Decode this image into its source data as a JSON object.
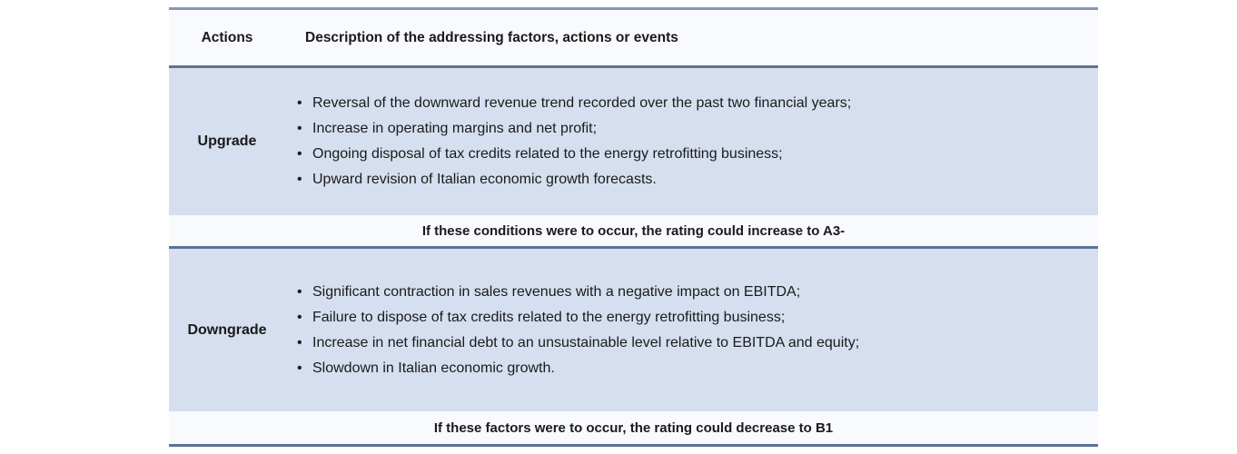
{
  "colors": {
    "row_bg": "#d6dff0",
    "band_bg": "#f8fafd",
    "border_dark": "#5a7394",
    "border_light": "#8398b4",
    "text": "#1a1a1a",
    "page_bg": "#ffffff"
  },
  "table": {
    "header": {
      "col1": "Actions",
      "col2": "Description of the addressing factors, actions or events"
    },
    "sections": [
      {
        "action": "Upgrade",
        "bullets": [
          "Reversal of the downward revenue trend recorded over the past two financial years;",
          "Increase in operating margins and net profit;",
          "Ongoing disposal of tax credits related to the energy retrofitting business;",
          "Upward revision of Italian economic growth forecasts."
        ],
        "note": "If these conditions were to occur, the rating could increase to A3-"
      },
      {
        "action": "Downgrade",
        "bullets": [
          "Significant contraction in sales revenues with a negative impact on EBITDA;",
          "Failure to dispose of tax credits related to the energy retrofitting business;",
          "Increase in net financial debt to an unsustainable level relative to EBITDA and equity;",
          "Slowdown in Italian economic growth."
        ],
        "note": "If these factors were to occur, the rating could decrease to B1"
      }
    ]
  }
}
